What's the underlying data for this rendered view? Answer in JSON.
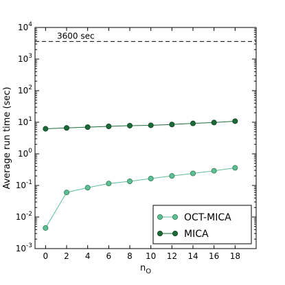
{
  "chart_data": {
    "type": "line",
    "title": "",
    "xlabel": "n",
    "xlabel_sub": "O",
    "ylabel": "Average run time (sec)",
    "y_scale": "log",
    "xlim": [
      -1,
      20
    ],
    "ylim": [
      0.001,
      10000
    ],
    "x_ticks": [
      0,
      2,
      4,
      6,
      8,
      10,
      12,
      14,
      16,
      18
    ],
    "x_tick_labels": [
      "0",
      "2",
      "4",
      "6",
      "8",
      "10",
      "12",
      "14",
      "16",
      "18"
    ],
    "y_ticks": [
      {
        "value": 0.001,
        "base": "10",
        "exp": "-3"
      },
      {
        "value": 0.01,
        "base": "10",
        "exp": "-2"
      },
      {
        "value": 0.1,
        "base": "10",
        "exp": "-1"
      },
      {
        "value": 1,
        "base": "10",
        "exp": "0"
      },
      {
        "value": 10,
        "base": "10",
        "exp": "1"
      },
      {
        "value": 100,
        "base": "10",
        "exp": "2"
      },
      {
        "value": 1000,
        "base": "10",
        "exp": "3"
      },
      {
        "value": 10000,
        "base": "10",
        "exp": "4"
      }
    ],
    "grid": false,
    "legend_position": "lower-right",
    "reference_line": {
      "y": 3600,
      "label": "3600 sec",
      "style": "dashed",
      "color": "#000000"
    },
    "series": [
      {
        "name": "OCT-MICA",
        "color": "#5fbf94",
        "marker_fill": "#5fbf94",
        "marker_edge": "#2f7a57",
        "x": [
          0,
          2,
          4,
          6,
          8,
          10,
          12,
          14,
          16,
          18
        ],
        "y": [
          0.0045,
          0.06,
          0.085,
          0.115,
          0.135,
          0.165,
          0.2,
          0.24,
          0.29,
          0.36
        ]
      },
      {
        "name": "MICA",
        "color": "#1a6b38",
        "marker_fill": "#1a6b38",
        "marker_edge": "#0d3d1f",
        "x": [
          0,
          2,
          4,
          6,
          8,
          10,
          12,
          14,
          16,
          18
        ],
        "y": [
          6.2,
          6.6,
          7.0,
          7.4,
          7.8,
          8.0,
          8.5,
          9.2,
          9.8,
          10.8
        ]
      }
    ]
  }
}
